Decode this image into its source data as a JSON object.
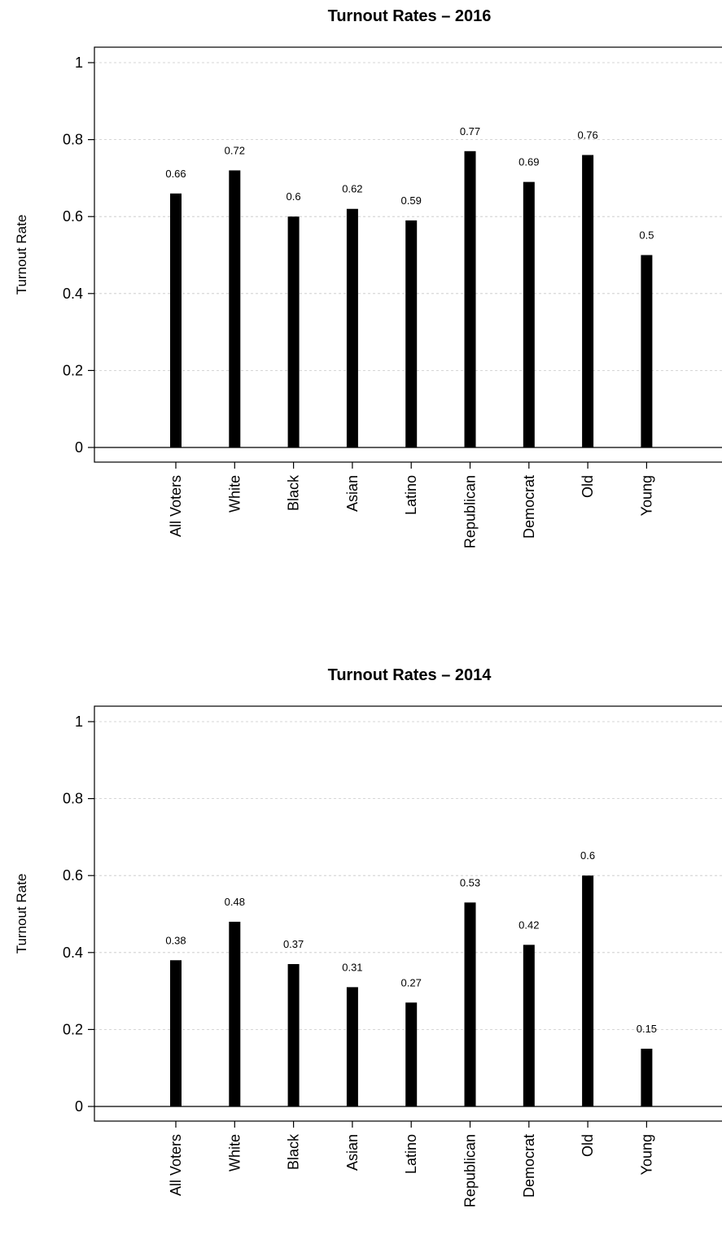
{
  "chart_data": [
    {
      "type": "bar",
      "title": "Turnout Rates – 2016",
      "xlabel": "",
      "ylabel": "Turnout Rate",
      "ylim": [
        0,
        1
      ],
      "yticks": [
        "0",
        "0.2",
        "0.4",
        "0.6",
        "0.8",
        "1"
      ],
      "grid": true,
      "categories": [
        "All Voters",
        "White",
        "Black",
        "Asian",
        "Latino",
        "Republican",
        "Democrat",
        "Old",
        "Young"
      ],
      "values": [
        0.66,
        0.72,
        0.6,
        0.62,
        0.59,
        0.77,
        0.69,
        0.76,
        0.5
      ],
      "data_labels": [
        "0.66",
        "0.72",
        "0.6",
        "0.62",
        "0.59",
        "0.77",
        "0.69",
        "0.76",
        "0.5"
      ],
      "bar_color": "#000000"
    },
    {
      "type": "bar",
      "title": "Turnout Rates – 2014",
      "xlabel": "",
      "ylabel": "Turnout Rate",
      "ylim": [
        0,
        1
      ],
      "yticks": [
        "0",
        "0.2",
        "0.4",
        "0.6",
        "0.8",
        "1"
      ],
      "grid": true,
      "categories": [
        "All Voters",
        "White",
        "Black",
        "Asian",
        "Latino",
        "Republican",
        "Democrat",
        "Old",
        "Young"
      ],
      "values": [
        0.38,
        0.48,
        0.37,
        0.31,
        0.27,
        0.53,
        0.42,
        0.6,
        0.15
      ],
      "data_labels": [
        "0.38",
        "0.48",
        "0.37",
        "0.31",
        "0.27",
        "0.53",
        "0.42",
        "0.6",
        "0.15"
      ],
      "bar_color": "#000000"
    }
  ]
}
